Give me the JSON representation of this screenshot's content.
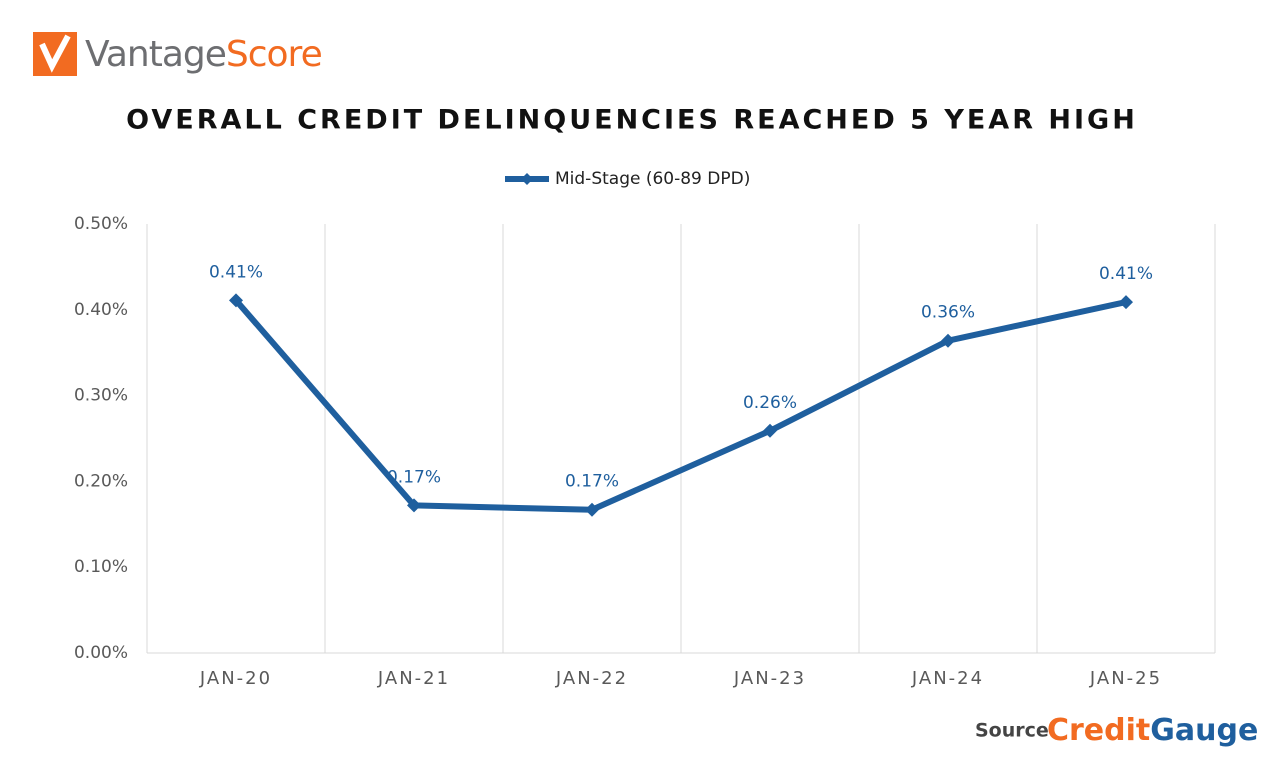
{
  "header": {
    "logo_part1": "Vantage",
    "logo_part2": "Score"
  },
  "chart_data": {
    "type": "line",
    "title": "OVERALL CREDIT DELINQUENCIES REACHED 5 YEAR HIGH",
    "categories": [
      "JAN-20",
      "JAN-21",
      "JAN-22",
      "JAN-23",
      "JAN-24",
      "JAN-25"
    ],
    "series": [
      {
        "name": "Mid-Stage (60-89 DPD)",
        "color": "#1f5f9e",
        "values": [
          0.411,
          0.172,
          0.167,
          0.259,
          0.364,
          0.409
        ],
        "value_labels": [
          "0.41%",
          "0.17%",
          "0.17%",
          "0.26%",
          "0.36%",
          "0.41%"
        ]
      }
    ],
    "ylim": [
      0,
      0.5
    ],
    "yticks": [
      {
        "value": 0,
        "label": "0.00%"
      },
      {
        "value": 0.1,
        "label": "0.10%"
      },
      {
        "value": 0.2,
        "label": "0.20%"
      },
      {
        "value": 0.3,
        "label": "0.30%"
      },
      {
        "value": 0.4,
        "label": "0.40%"
      },
      {
        "value": 0.5,
        "label": "0.50%"
      }
    ],
    "legend": "top"
  },
  "footer": {
    "source": "Source:",
    "brand_part1": "Credit",
    "brand_part2": "Gauge"
  }
}
